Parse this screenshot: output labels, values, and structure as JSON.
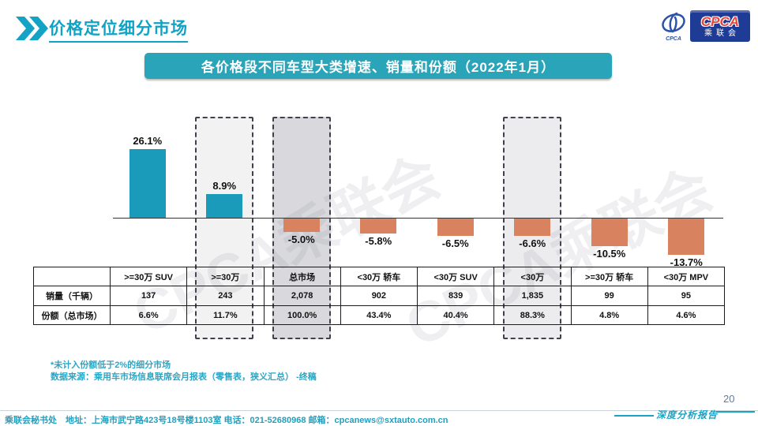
{
  "header": {
    "title": "价格定位细分市场"
  },
  "logo": {
    "cpca": "CPCA",
    "sub": "乘联会",
    "emblem_caption": "CPCA"
  },
  "banner": {
    "title": "各价格段不同车型大类增速、销量和份额（2022年1月）"
  },
  "chart_data": {
    "type": "bar",
    "title": "各价格段不同车型大类增速、销量和份额（2022年1月）",
    "categories": [
      ">=30万 SUV",
      ">=30万",
      "总市场",
      "<30万 轿车",
      "<30万 SUV",
      "<30万",
      ">=30万 轿车",
      "<30万 MPV"
    ],
    "series": [
      {
        "name": "增速",
        "unit": "%",
        "values": [
          26.1,
          8.9,
          -5.0,
          -5.8,
          -6.5,
          -6.6,
          -10.5,
          -13.7
        ]
      },
      {
        "name": "销量（千辆）",
        "values_text": [
          "137",
          "243",
          "2,078",
          "902",
          "839",
          "1,835",
          "99",
          "95"
        ]
      },
      {
        "name": "份额（总市场）",
        "values_text": [
          "6.6%",
          "11.7%",
          "100.0%",
          "43.4%",
          "40.4%",
          "88.3%",
          "4.8%",
          "4.6%"
        ]
      }
    ],
    "bar_labels": [
      "26.1%",
      "8.9%",
      "-5.0%",
      "-5.8%",
      "-6.5%",
      "-6.6%",
      "-10.5%",
      "-13.7%"
    ],
    "highlighted_categories": [
      ">=30万",
      "总市场",
      "<30万"
    ],
    "highlight_indexes": [
      1,
      2,
      5
    ],
    "ylim": [
      -20,
      30
    ],
    "grid": false,
    "legend": "none"
  },
  "table": {
    "corner": "",
    "row_labels": [
      "销量（千辆）",
      "份额（总市场）"
    ]
  },
  "footnotes": {
    "line1": "*未计入份额低于2%的细分市场",
    "line2": "数据来源：乘用车市场信息联席会月报表（零售表，狭义汇总） -终稿"
  },
  "footer": {
    "text": "乘联会秘书处　地址：上海市武宁路423号18号楼1103室 电话：021-52680968  邮箱：cpcanews@sxtauto.com.cn"
  },
  "page": {
    "number": "20",
    "report_label": "深度分析报告"
  },
  "watermark": {
    "text": "CPCA乘联会"
  },
  "colors": {
    "teal_title": "#0fa3c6",
    "banner_bg": "#2aa4b9",
    "bar_positive": "#1b9bba",
    "bar_negative": "#d9825f",
    "highlight_border": "#41414d",
    "highlight_fills": [
      "#f2f2f3",
      "#d8d8dd",
      "#ececee"
    ],
    "footer_teal": "#21a0bf",
    "page_number_color": "#5d7da1"
  }
}
